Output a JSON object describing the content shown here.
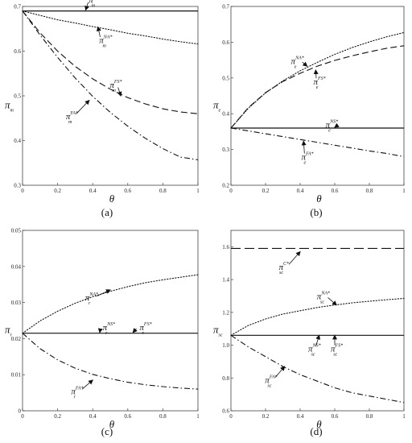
{
  "chart_data": [
    {
      "type": "line",
      "caption": "(a)",
      "xlabel": "θ",
      "ylabel": "π",
      "ylabel_sub": "m",
      "xlim": [
        0,
        1
      ],
      "ylim": [
        0.3,
        0.7
      ],
      "xticks": [
        "0",
        "0.2",
        "0.4",
        "0.6",
        "0.8",
        "1"
      ],
      "yticks": [
        "0.3",
        "0.4",
        "0.5",
        "0.6",
        "0.7"
      ],
      "x": [
        0,
        0.1,
        0.2,
        0.3,
        0.4,
        0.5,
        0.6,
        0.7,
        0.8,
        0.9,
        1.0
      ],
      "series": [
        {
          "style": "solid",
          "values": [
            0.69,
            0.69,
            0.69,
            0.69,
            0.69,
            0.69,
            0.69,
            0.69,
            0.69,
            0.69,
            0.69
          ]
        },
        {
          "style": "dotted",
          "values": [
            0.69,
            0.68,
            0.67,
            0.663,
            0.655,
            0.648,
            0.64,
            0.634,
            0.627,
            0.621,
            0.616
          ]
        },
        {
          "style": "dashed",
          "values": [
            0.69,
            0.641,
            0.6,
            0.566,
            0.538,
            0.515,
            0.496,
            0.482,
            0.471,
            0.464,
            0.46
          ]
        },
        {
          "style": "dashdot",
          "values": [
            0.69,
            0.636,
            0.586,
            0.54,
            0.499,
            0.463,
            0.432,
            0.405,
            0.382,
            0.363,
            0.357
          ]
        }
      ],
      "annotations": [
        {
          "base": "π",
          "sub": "m",
          "sup": "NS*",
          "x": 0.4,
          "y": 0.715,
          "tx": 0.36,
          "ty": 0.692
        },
        {
          "base": "π",
          "sub": "m",
          "sup": "NA*",
          "x": 0.46,
          "y": 0.625,
          "tx": 0.43,
          "ty": 0.654
        },
        {
          "base": "π",
          "sub": "m",
          "sup": "FS*",
          "x": 0.52,
          "y": 0.525,
          "tx": 0.56,
          "ty": 0.5
        },
        {
          "base": "π",
          "sub": "m",
          "sup": "FA*",
          "x": 0.27,
          "y": 0.455,
          "tx": 0.38,
          "ty": 0.49
        }
      ]
    },
    {
      "type": "line",
      "caption": "(b)",
      "xlabel": "θ",
      "ylabel": "π",
      "ylabel_sub": "e",
      "xlim": [
        0,
        1
      ],
      "ylim": [
        0.2,
        0.7
      ],
      "xticks": [
        "0",
        "0.2",
        "0.4",
        "0.6",
        "0.8",
        "1"
      ],
      "yticks": [
        "0.2",
        "0.3",
        "0.4",
        "0.5",
        "0.6",
        "0.7"
      ],
      "x": [
        0,
        0.1,
        0.2,
        0.3,
        0.4,
        0.5,
        0.6,
        0.7,
        0.8,
        0.9,
        1.0
      ],
      "series": [
        {
          "style": "solid",
          "values": [
            0.36,
            0.36,
            0.36,
            0.36,
            0.36,
            0.36,
            0.36,
            0.36,
            0.36,
            0.36,
            0.36
          ]
        },
        {
          "style": "dotted",
          "values": [
            0.36,
            0.415,
            0.458,
            0.492,
            0.52,
            0.544,
            0.566,
            0.585,
            0.601,
            0.615,
            0.627
          ]
        },
        {
          "style": "dashed",
          "values": [
            0.36,
            0.417,
            0.459,
            0.49,
            0.513,
            0.533,
            0.549,
            0.562,
            0.573,
            0.583,
            0.59
          ]
        },
        {
          "style": "dashdot",
          "values": [
            0.36,
            0.352,
            0.344,
            0.336,
            0.328,
            0.32,
            0.312,
            0.304,
            0.296,
            0.289,
            0.28
          ]
        }
      ],
      "annotations": [
        {
          "base": "π",
          "sub": "e",
          "sup": "NA*",
          "x": 0.37,
          "y": 0.548,
          "tx": 0.44,
          "ty": 0.533
        },
        {
          "base": "π",
          "sub": "e",
          "sup": "FS*",
          "x": 0.5,
          "y": 0.49,
          "tx": 0.49,
          "ty": 0.522
        },
        {
          "base": "π",
          "sub": "e",
          "sup": "NS*",
          "x": 0.57,
          "y": 0.37,
          "tx": 0.6,
          "ty": 0.362
        },
        {
          "base": "π",
          "sub": "e",
          "sup": "FA*",
          "x": 0.43,
          "y": 0.28,
          "tx": 0.42,
          "ty": 0.323
        }
      ]
    },
    {
      "type": "line",
      "caption": "(c)",
      "xlabel": "θ",
      "ylabel": "π",
      "ylabel_sub": "r",
      "xlim": [
        0,
        1
      ],
      "ylim": [
        0,
        0.05
      ],
      "xticks": [
        "0",
        "0.2",
        "0.4",
        "0.6",
        "0.8",
        "1"
      ],
      "yticks": [
        "0",
        "0.01",
        "0.02",
        "0.03",
        "0.04",
        "0.05"
      ],
      "x": [
        0,
        0.1,
        0.2,
        0.3,
        0.4,
        0.5,
        0.6,
        0.7,
        0.8,
        0.9,
        1.0
      ],
      "series": [
        {
          "style": "solid",
          "values": [
            0.0215,
            0.0215,
            0.0215,
            0.0215,
            0.0215,
            0.0215,
            0.0215,
            0.0215,
            0.0215,
            0.0215,
            0.0215
          ]
        },
        {
          "style": "dotted",
          "values": [
            0.0215,
            0.0249,
            0.0276,
            0.0298,
            0.0316,
            0.0331,
            0.0344,
            0.0355,
            0.0363,
            0.037,
            0.0377
          ]
        },
        {
          "style": "dashdot",
          "values": [
            0.0215,
            0.0172,
            0.0141,
            0.0118,
            0.0101,
            0.0089,
            0.0079,
            0.0072,
            0.0067,
            0.0063,
            0.006
          ]
        }
      ],
      "annotations": [
        {
          "base": "π",
          "sub": "r",
          "sup": "NA*",
          "x": 0.38,
          "y": 0.0315,
          "tx": 0.5,
          "ty": 0.0335
        },
        {
          "base": "π",
          "sub": "r",
          "sup": "NS*",
          "x": 0.48,
          "y": 0.0232,
          "tx": 0.44,
          "ty": 0.0217
        },
        {
          "base": "π",
          "sub": "r",
          "sup": "FS*",
          "x": 0.69,
          "y": 0.0232,
          "tx": 0.63,
          "ty": 0.0217
        },
        {
          "base": "π",
          "sub": "r",
          "sup": "FA*",
          "x": 0.3,
          "y": 0.0055,
          "tx": 0.4,
          "ty": 0.0085
        }
      ]
    },
    {
      "type": "line",
      "caption": "(d)",
      "xlabel": "θ",
      "ylabel": "π",
      "ylabel_sub": "sc",
      "xlim": [
        0,
        1
      ],
      "ylim": [
        0.6,
        1.7
      ],
      "xticks": [
        "0",
        "0.2",
        "0.4",
        "0.6",
        "0.8",
        "1"
      ],
      "yticks": [
        "0.6",
        "0.8",
        "1.0",
        "1.2",
        "1.4",
        "1.6"
      ],
      "x": [
        0,
        0.1,
        0.2,
        0.3,
        0.4,
        0.5,
        0.6,
        0.7,
        0.8,
        0.9,
        1.0
      ],
      "series": [
        {
          "style": "longdash",
          "values": [
            1.59,
            1.59,
            1.59,
            1.59,
            1.59,
            1.59,
            1.59,
            1.59,
            1.59,
            1.59,
            1.59
          ]
        },
        {
          "style": "solid",
          "values": [
            1.06,
            1.06,
            1.06,
            1.06,
            1.06,
            1.06,
            1.06,
            1.06,
            1.06,
            1.06,
            1.06
          ]
        },
        {
          "style": "dotted",
          "values": [
            1.06,
            1.12,
            1.16,
            1.19,
            1.21,
            1.23,
            1.245,
            1.258,
            1.268,
            1.277,
            1.285
          ]
        },
        {
          "style": "dashdot",
          "values": [
            1.06,
            0.99,
            0.93,
            0.87,
            0.82,
            0.78,
            0.74,
            0.71,
            0.69,
            0.67,
            0.65
          ]
        }
      ],
      "annotations": [
        {
          "base": "π",
          "sub": "sc",
          "sup": "C*",
          "x": 0.3,
          "y": 1.48,
          "tx": 0.4,
          "ty": 1.57
        },
        {
          "base": "π",
          "sub": "sc",
          "sup": "NA*",
          "x": 0.52,
          "y": 1.3,
          "tx": 0.61,
          "ty": 1.245
        },
        {
          "base": "π",
          "sub": "sc",
          "sup": "NS*",
          "x": 0.47,
          "y": 0.98,
          "tx": 0.51,
          "ty": 1.06
        },
        {
          "base": "π",
          "sub": "sc",
          "sup": "FS*",
          "x": 0.6,
          "y": 0.98,
          "tx": 0.6,
          "ty": 1.06
        },
        {
          "base": "π",
          "sub": "sc",
          "sup": "FA*",
          "x": 0.22,
          "y": 0.79,
          "tx": 0.31,
          "ty": 0.87
        }
      ]
    }
  ]
}
